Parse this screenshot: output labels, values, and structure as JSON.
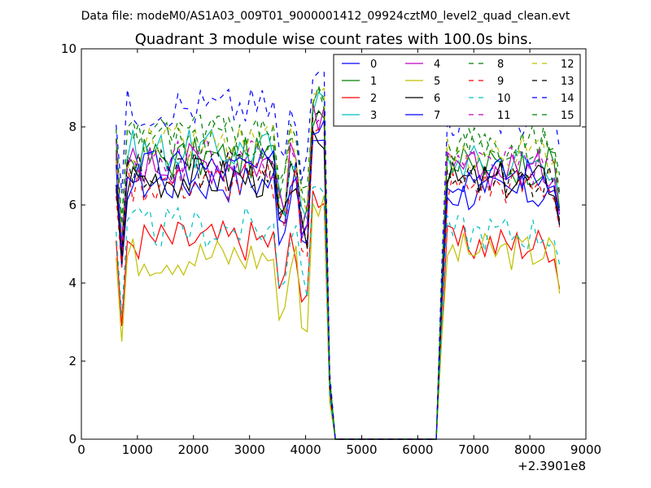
{
  "header": {
    "data_file": "Data file: modeM0/AS1A03_009T01_9000001412_09924cztM0_level2_quad_clean.evt"
  },
  "chart_data": {
    "type": "line",
    "title": "Quadrant 3 module wise count rates with 100.0s bins.",
    "xlabel": "",
    "ylabel": "",
    "x_offset_label": "+2.3901e8",
    "xlim": [
      0,
      9000
    ],
    "ylim": [
      0,
      10
    ],
    "xticks": [
      0,
      1000,
      2000,
      3000,
      4000,
      5000,
      6000,
      7000,
      8000,
      9000
    ],
    "yticks": [
      0,
      2,
      4,
      6,
      8,
      10
    ],
    "grid": false,
    "legend_position": "top-right",
    "segments": [
      {
        "x_start": 620,
        "x_end": 4330,
        "bins": 38,
        "low_dip_bins": [
          2,
          3
        ]
      },
      {
        "x_start": 4430,
        "x_end": 6330,
        "gap_value": 0
      },
      {
        "x_start": 6430,
        "x_end": 8530,
        "bins": 22
      }
    ],
    "series": [
      {
        "name": "0",
        "color": "#0000ff",
        "style": "solid",
        "base": 6.6,
        "seg2_base": 6.3
      },
      {
        "name": "1",
        "color": "#008000",
        "style": "solid",
        "base": 7.2,
        "seg2_base": 7.0
      },
      {
        "name": "2",
        "color": "#ff0000",
        "style": "solid",
        "base": 5.1,
        "seg2_base": 5.0
      },
      {
        "name": "3",
        "color": "#00bfbf",
        "style": "solid",
        "base": 7.4,
        "seg2_base": 7.1
      },
      {
        "name": "4",
        "color": "#bf00bf",
        "style": "solid",
        "base": 7.1,
        "seg2_base": 6.9
      },
      {
        "name": "5",
        "color": "#bfbf00",
        "style": "solid",
        "base": 4.7,
        "seg2_base": 4.8
      },
      {
        "name": "6",
        "color": "#000000",
        "style": "solid",
        "base": 6.7,
        "seg2_base": 6.6
      },
      {
        "name": "7",
        "color": "#0000ff",
        "style": "solid",
        "base": 6.9,
        "seg2_base": 6.8
      },
      {
        "name": "8",
        "color": "#008000",
        "style": "dashed",
        "base": 7.8,
        "seg2_base": 7.6
      },
      {
        "name": "9",
        "color": "#ff0000",
        "style": "dashed",
        "base": 6.6,
        "seg2_base": 6.5
      },
      {
        "name": "10",
        "color": "#00bfbf",
        "style": "dashed",
        "base": 5.4,
        "seg2_base": 5.3
      },
      {
        "name": "11",
        "color": "#bf00bf",
        "style": "dashed",
        "base": 7.2,
        "seg2_base": 7.0
      },
      {
        "name": "12",
        "color": "#bfbf00",
        "style": "dashed",
        "base": 7.5,
        "seg2_base": 7.3
      },
      {
        "name": "13",
        "color": "#000000",
        "style": "dashed",
        "base": 6.9,
        "seg2_base": 6.7
      },
      {
        "name": "14",
        "color": "#0000ff",
        "style": "dashed",
        "base": 8.5,
        "seg2_base": 8.2
      },
      {
        "name": "15",
        "color": "#008000",
        "style": "dashed",
        "base": 7.7,
        "seg2_base": 7.5
      }
    ]
  }
}
